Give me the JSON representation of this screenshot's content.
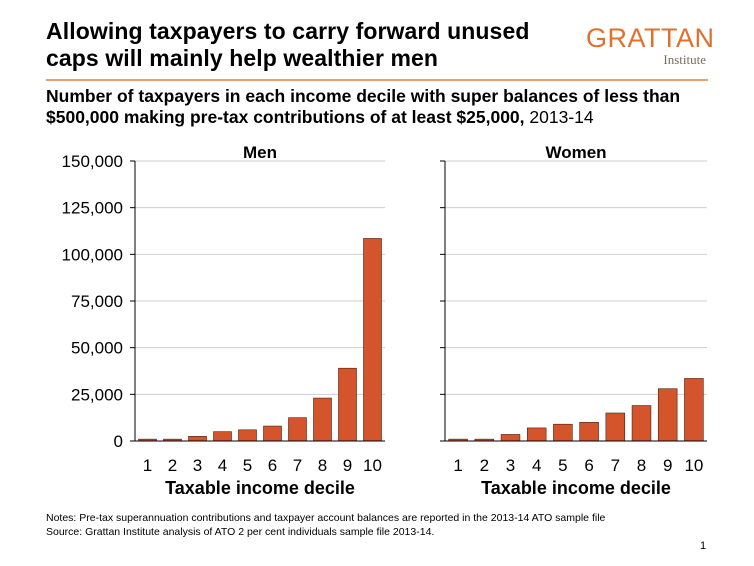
{
  "title": "Allowing taxpayers to carry forward unused caps will mainly help wealthier men",
  "logo": {
    "main": "GRATTAN",
    "sub": "Institute"
  },
  "subtitle": {
    "bold": "Number of taxpayers in each income decile with super balances of less than $500,000 making pre-tax contributions of at least $25,000,",
    "year": " 2013-14"
  },
  "notes": {
    "line1": "Notes: Pre-tax superannuation contributions and taxpayer account balances are reported in the 2013-14 ATO sample file",
    "line2": "Source: Grattan Institute analysis of ATO 2 per cent individuals sample file 2013-14."
  },
  "page_number": "1",
  "colors": {
    "bar": "#d4552b",
    "bar_stroke": "#4a2010",
    "grid": "#cfcfcf",
    "accent": "#e0712d"
  },
  "chart_data": [
    {
      "type": "bar",
      "title": "Men",
      "xlabel": "Taxable income decile",
      "ylabel": "",
      "categories": [
        "1",
        "2",
        "3",
        "4",
        "5",
        "6",
        "7",
        "8",
        "9",
        "10"
      ],
      "values": [
        1000,
        1000,
        2500,
        5000,
        6000,
        8000,
        12500,
        23000,
        39000,
        108500
      ],
      "ylim": [
        0,
        150000
      ],
      "yticks": [
        0,
        25000,
        50000,
        75000,
        100000,
        125000,
        150000
      ],
      "ytick_labels": [
        "0",
        "25,000",
        "50,000",
        "75,000",
        "100,000",
        "125,000",
        "150,000"
      ],
      "grid": true
    },
    {
      "type": "bar",
      "title": "Women",
      "xlabel": "Taxable income decile",
      "ylabel": "",
      "categories": [
        "1",
        "2",
        "3",
        "4",
        "5",
        "6",
        "7",
        "8",
        "9",
        "10"
      ],
      "values": [
        1000,
        1000,
        3500,
        7000,
        9000,
        10000,
        15000,
        19000,
        28000,
        33500
      ],
      "ylim": [
        0,
        150000
      ],
      "yticks": [
        0,
        25000,
        50000,
        75000,
        100000,
        125000,
        150000
      ],
      "ytick_labels": [],
      "grid": true
    }
  ]
}
